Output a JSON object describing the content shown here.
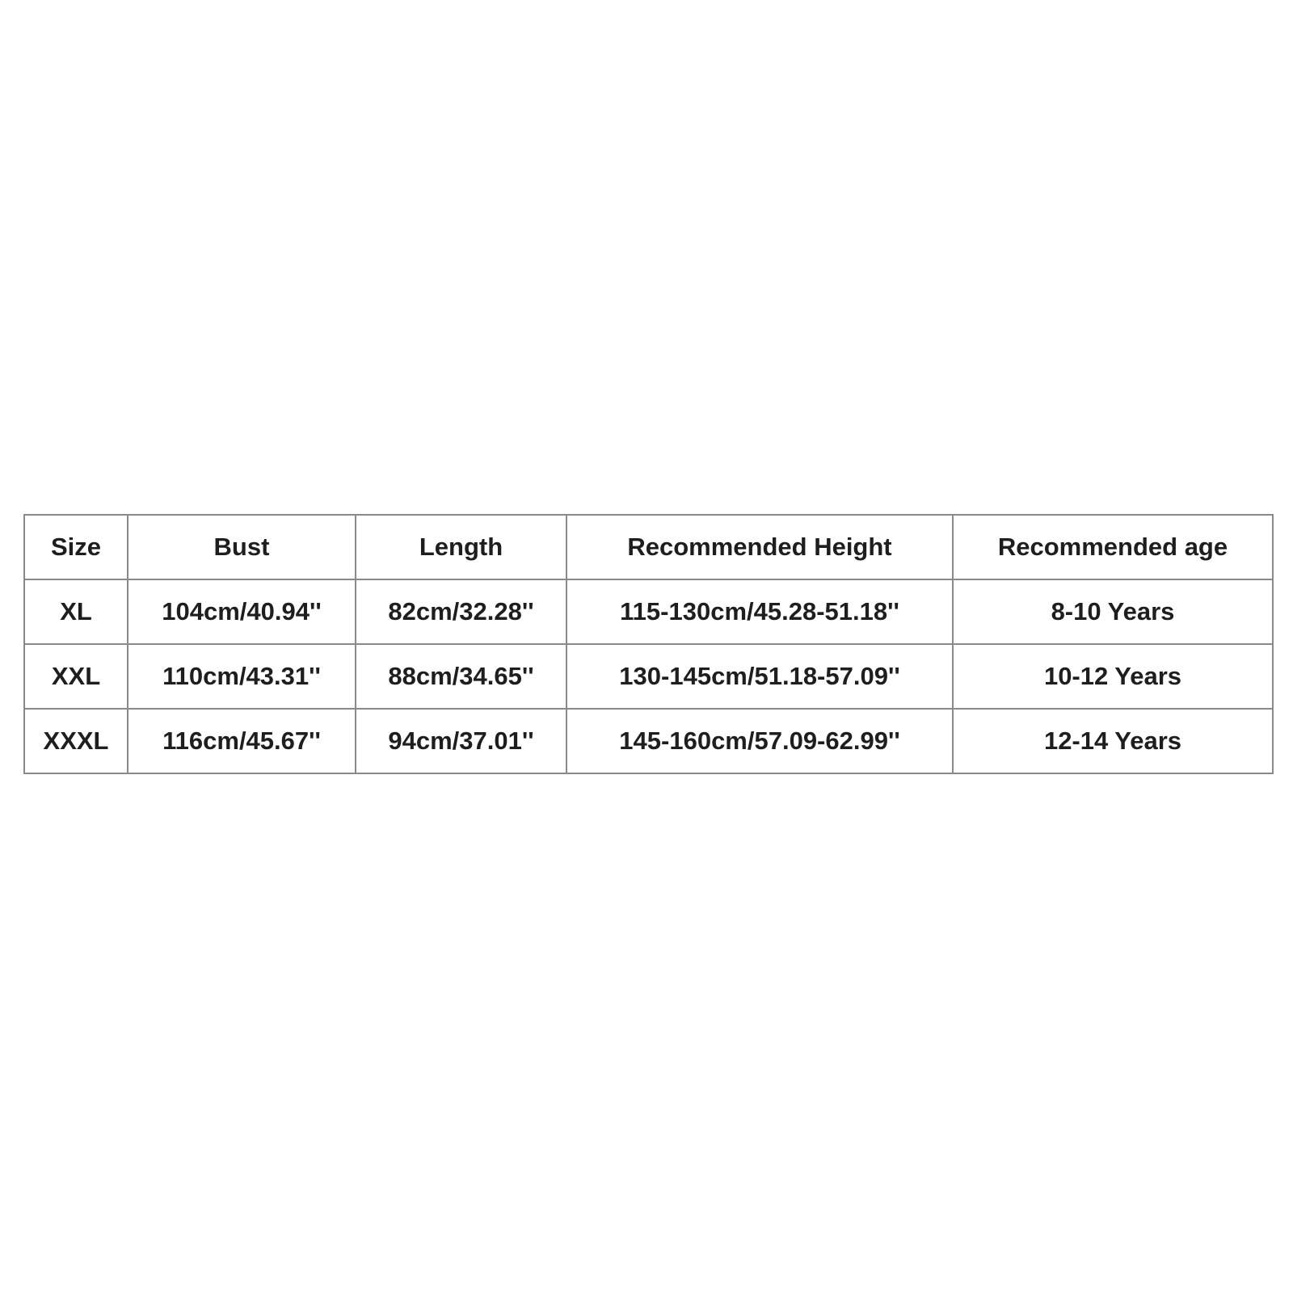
{
  "table": {
    "headers": [
      "Size",
      "Bust",
      "Length",
      "Recommended Height",
      "Recommended age"
    ],
    "rows": [
      [
        "XL",
        "104cm/40.94''",
        "82cm/32.28''",
        "115-130cm/45.28-51.18''",
        "8-10 Years"
      ],
      [
        "XXL",
        "110cm/43.31''",
        "88cm/34.65''",
        "130-145cm/51.18-57.09''",
        "10-12 Years"
      ],
      [
        "XXXL",
        "116cm/45.67''",
        "94cm/37.01''",
        "145-160cm/57.09-62.99''",
        "12-14 Years"
      ]
    ]
  }
}
